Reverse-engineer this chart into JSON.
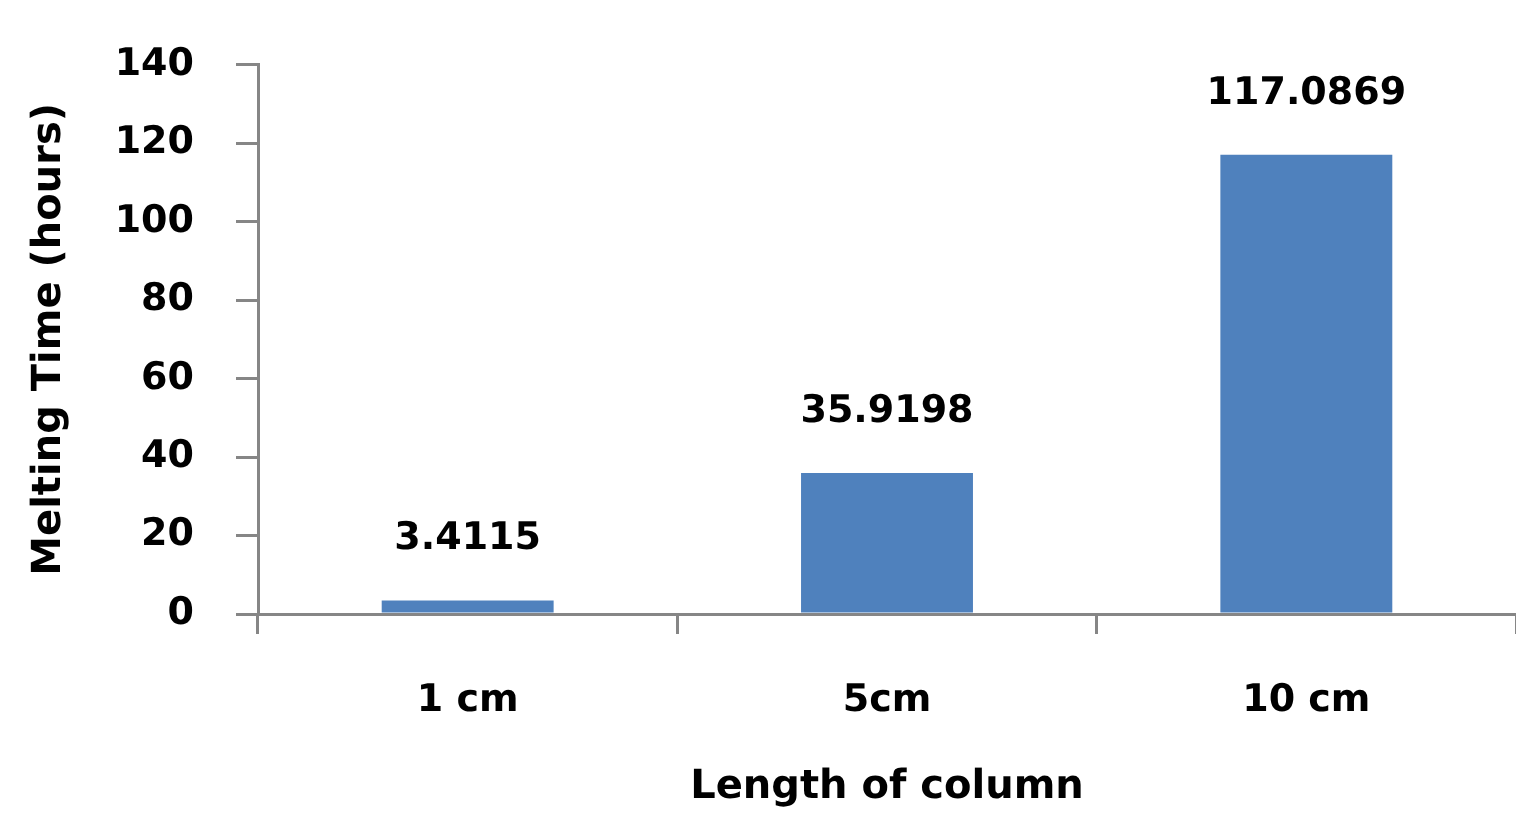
{
  "chart_data": {
    "type": "bar",
    "xlabel": "Length of column",
    "ylabel": "Melting Time (hours)",
    "categories": [
      "1 cm",
      "5cm",
      "10 cm"
    ],
    "values": [
      3.4115,
      35.9198,
      117.0869
    ],
    "color": "#4f81bd",
    "ylim": [
      0,
      140
    ],
    "yticks": [
      0,
      20,
      40,
      60,
      80,
      100,
      120,
      140
    ],
    "data_labels": true,
    "grid": false,
    "legend": false
  }
}
